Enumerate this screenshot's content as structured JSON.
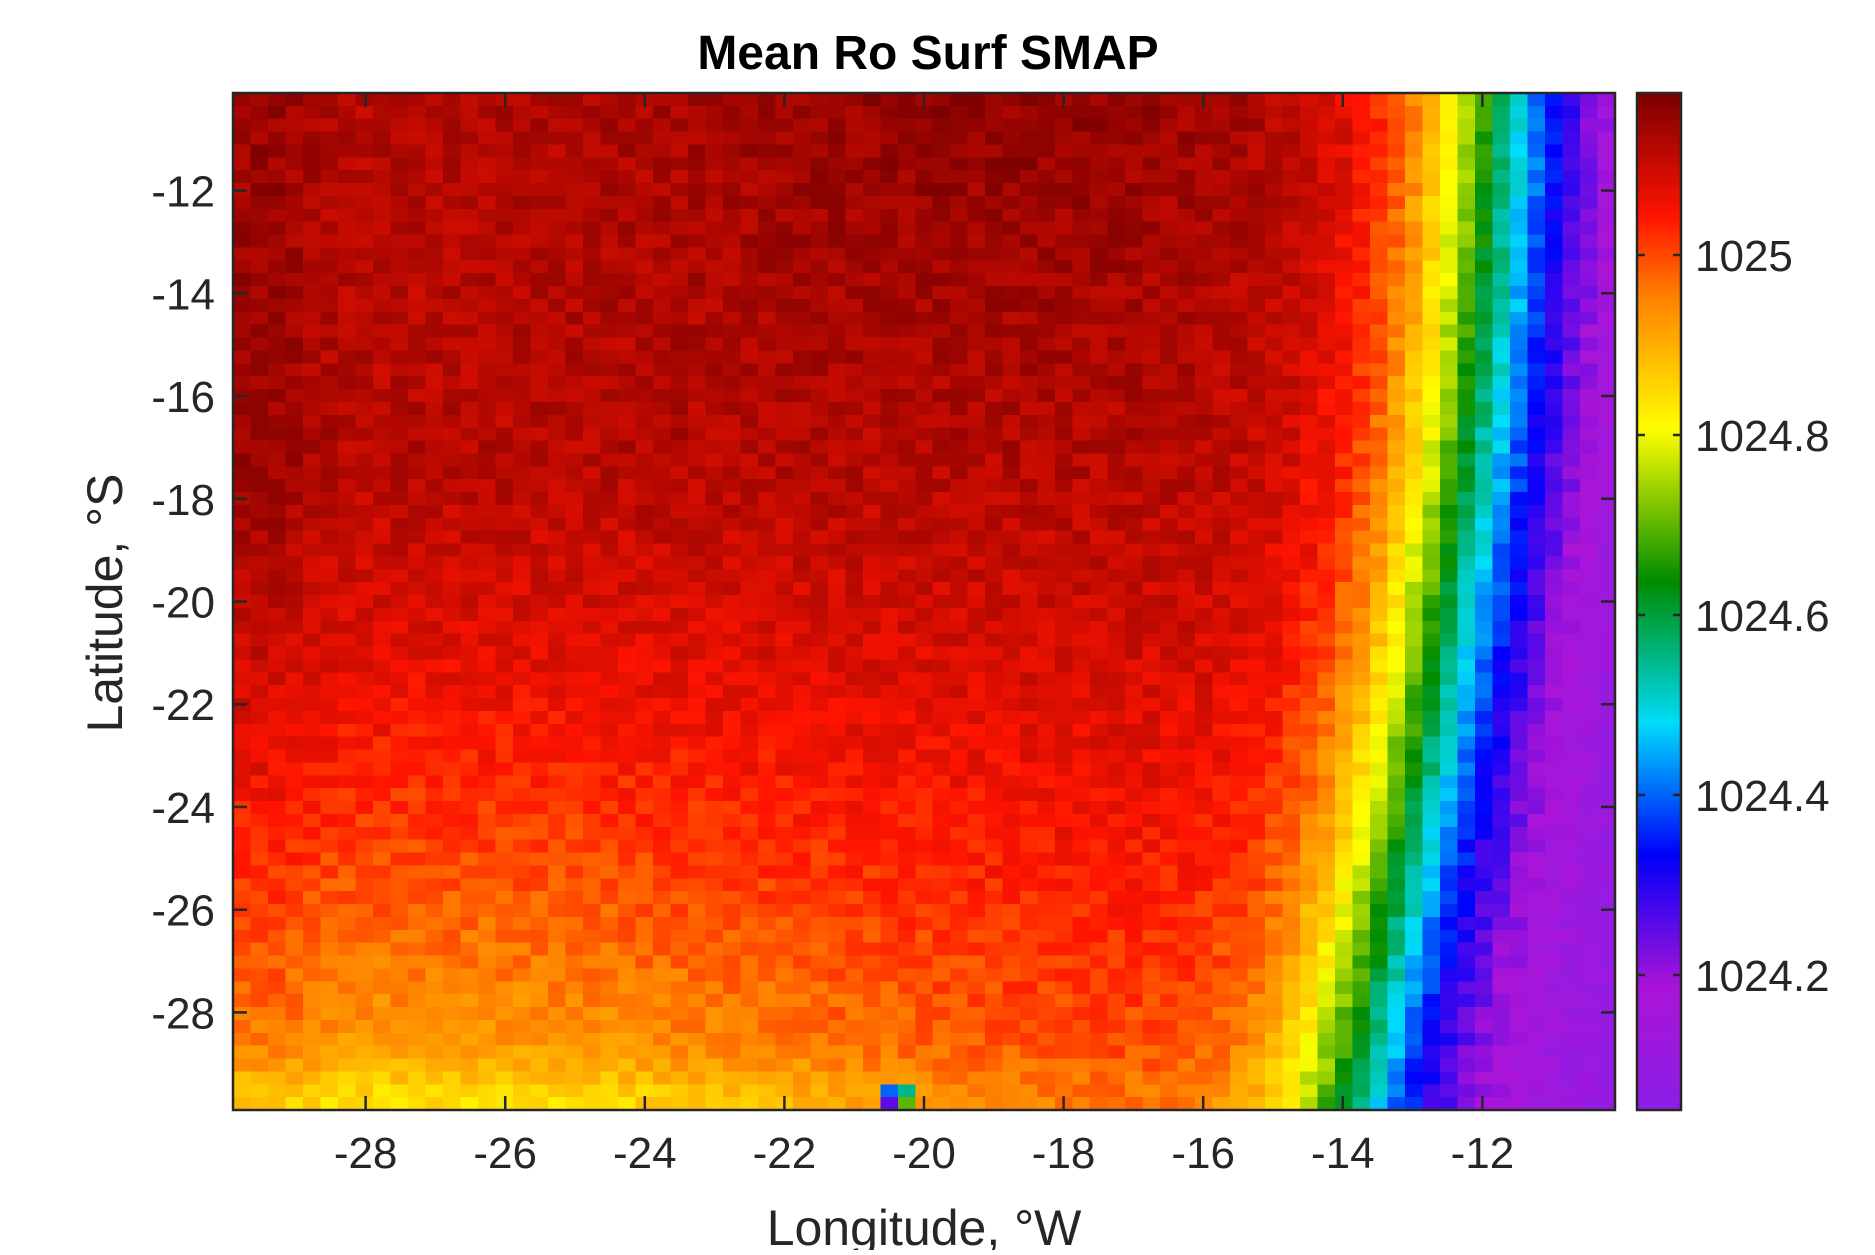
{
  "chart_data": {
    "type": "heatmap",
    "title": "Mean Ro Surf SMAP",
    "xlabel": "Longitude, °W",
    "ylabel": "Latitude, °S",
    "xlim": [
      -29.9,
      -10.1
    ],
    "ylim": [
      -29.9,
      -10.1
    ],
    "x_ticks": [
      -28,
      -26,
      -24,
      -22,
      -20,
      -18,
      -16,
      -14,
      -12
    ],
    "y_ticks": [
      -12,
      -14,
      -16,
      -18,
      -20,
      -22,
      -24,
      -26,
      -28
    ],
    "grid": "off",
    "colorbar": {
      "location": "right",
      "colormap": "jet-like (purple → blue → cyan → green → yellow → orange → red → dark red)",
      "clim": [
        1024.05,
        1025.18
      ],
      "ticks": [
        1024.2,
        1024.4,
        1024.6,
        1024.8,
        1025
      ],
      "tick_labels": [
        "1024.2",
        "1024.4",
        "1024.6",
        "1024.8",
        "1025"
      ]
    },
    "field_description": {
      "grid_resolution_deg": 0.25,
      "west_interior_max_approx": 1025.12,
      "southwest_yellow_band_approx": 1024.9,
      "eastern_edge_min_approx": 1024.1,
      "front_longitude_north_deg": -13.5,
      "front_longitude_south_deg": -15.5,
      "anomaly_cell": {
        "lon": -20.5,
        "lat": -29.5,
        "values": [
          1024.4,
          1024.55,
          1024.25,
          1024.7
        ]
      }
    }
  }
}
